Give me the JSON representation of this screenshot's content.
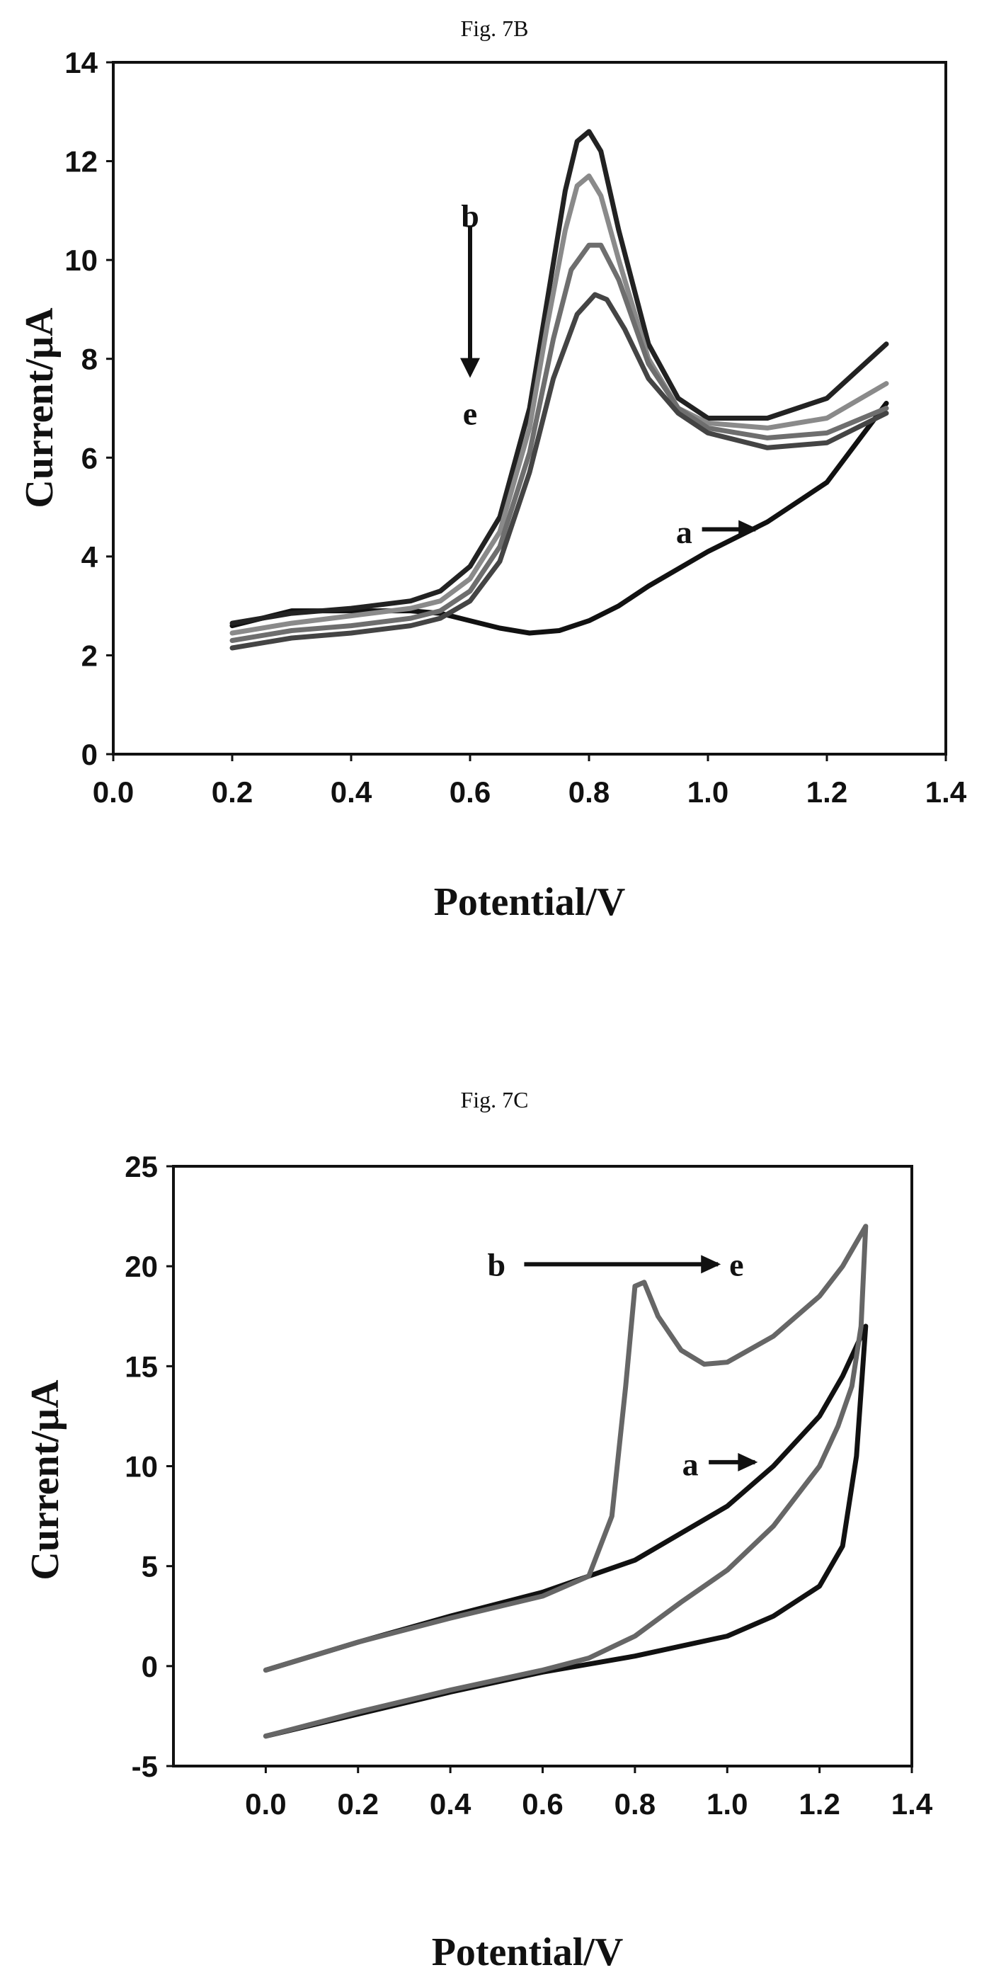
{
  "figures": {
    "b_title": "Fig. 7B",
    "c_title": "Fig. 7C"
  },
  "chart_data": [
    {
      "type": "line",
      "title": "Fig. 7B",
      "xlabel": "Potential/V",
      "ylabel": "Current/µA",
      "xlim": [
        0.0,
        1.4
      ],
      "ylim": [
        0,
        14
      ],
      "xticks": [
        "0.0",
        "0.2",
        "0.4",
        "0.6",
        "0.8",
        "1.0",
        "1.2",
        "1.4"
      ],
      "yticks": [
        "0",
        "2",
        "4",
        "6",
        "8",
        "10",
        "12",
        "14"
      ],
      "grid": false,
      "annotations": [
        {
          "text": "b",
          "x": 0.6,
          "y": 10.9
        },
        {
          "text": "e",
          "x": 0.6,
          "y": 6.9
        },
        {
          "text": "a",
          "x": 0.96,
          "y": 4.5
        }
      ],
      "series": [
        {
          "color": "#111111",
          "x": [
            0.2,
            0.3,
            0.4,
            0.5,
            0.55,
            0.6,
            0.65,
            0.7,
            0.75,
            0.8,
            0.85,
            0.9,
            1.0,
            1.1,
            1.2,
            1.3
          ],
          "y": [
            2.6,
            2.9,
            2.9,
            2.9,
            2.85,
            2.7,
            2.55,
            2.45,
            2.5,
            2.7,
            3.0,
            3.4,
            4.1,
            4.7,
            5.5,
            7.1
          ]
        },
        {
          "color": "#222222",
          "x": [
            0.2,
            0.3,
            0.4,
            0.5,
            0.55,
            0.6,
            0.65,
            0.7,
            0.73,
            0.76,
            0.78,
            0.8,
            0.82,
            0.85,
            0.9,
            0.95,
            1.0,
            1.1,
            1.2,
            1.3
          ],
          "y": [
            2.65,
            2.85,
            2.95,
            3.1,
            3.3,
            3.8,
            4.8,
            7.0,
            9.2,
            11.4,
            12.4,
            12.6,
            12.2,
            10.6,
            8.3,
            7.2,
            6.8,
            6.8,
            7.2,
            8.3
          ]
        },
        {
          "color": "#8a8a8a",
          "x": [
            0.2,
            0.3,
            0.4,
            0.5,
            0.55,
            0.6,
            0.65,
            0.7,
            0.73,
            0.76,
            0.78,
            0.8,
            0.82,
            0.85,
            0.9,
            0.95,
            1.0,
            1.1,
            1.2,
            1.3
          ],
          "y": [
            2.45,
            2.65,
            2.8,
            2.95,
            3.1,
            3.55,
            4.5,
            6.6,
            8.7,
            10.6,
            11.5,
            11.7,
            11.3,
            10.0,
            8.0,
            7.0,
            6.7,
            6.6,
            6.8,
            7.5
          ]
        },
        {
          "color": "#6e6e6e",
          "x": [
            0.2,
            0.3,
            0.4,
            0.5,
            0.55,
            0.6,
            0.65,
            0.7,
            0.74,
            0.77,
            0.8,
            0.82,
            0.85,
            0.9,
            0.95,
            1.0,
            1.1,
            1.2,
            1.3
          ],
          "y": [
            2.3,
            2.5,
            2.6,
            2.75,
            2.9,
            3.3,
            4.2,
            6.1,
            8.4,
            9.8,
            10.3,
            10.3,
            9.6,
            7.9,
            7.0,
            6.6,
            6.4,
            6.5,
            7.0
          ]
        },
        {
          "color": "#444444",
          "x": [
            0.2,
            0.3,
            0.4,
            0.5,
            0.55,
            0.6,
            0.65,
            0.7,
            0.74,
            0.78,
            0.81,
            0.83,
            0.86,
            0.9,
            0.95,
            1.0,
            1.1,
            1.2,
            1.3
          ],
          "y": [
            2.15,
            2.35,
            2.45,
            2.6,
            2.75,
            3.1,
            3.9,
            5.7,
            7.6,
            8.9,
            9.3,
            9.2,
            8.6,
            7.6,
            6.9,
            6.5,
            6.2,
            6.3,
            6.9
          ]
        }
      ]
    },
    {
      "type": "line",
      "title": "Fig. 7C",
      "xlabel": "Potential/V",
      "ylabel": "Current/µA",
      "xlim": [
        -0.2,
        1.4
      ],
      "ylim": [
        -5,
        25
      ],
      "xticks": [
        "0.0",
        "0.2",
        "0.4",
        "0.6",
        "0.8",
        "1.0",
        "1.2",
        "1.4"
      ],
      "yticks": [
        "-5",
        "0",
        "5",
        "10",
        "15",
        "20",
        "25"
      ],
      "grid": false,
      "annotations": [
        {
          "text": "b",
          "x": 0.5,
          "y": 20.1
        },
        {
          "text": "e",
          "x": 1.02,
          "y": 20.1
        },
        {
          "text": "a",
          "x": 0.92,
          "y": 10.1
        }
      ],
      "series": [
        {
          "color": "#111111",
          "x": [
            0.0,
            0.2,
            0.4,
            0.6,
            0.8,
            1.0,
            1.1,
            1.2,
            1.25,
            1.28,
            1.3,
            1.28,
            1.25,
            1.2,
            1.1,
            1.0,
            0.8,
            0.6,
            0.4,
            0.2,
            0.0
          ],
          "y": [
            -0.2,
            1.2,
            2.5,
            3.7,
            5.3,
            8.0,
            10.0,
            12.5,
            14.5,
            16.0,
            17.0,
            10.5,
            6.0,
            4.0,
            2.5,
            1.5,
            0.5,
            -0.3,
            -1.3,
            -2.4,
            -3.5
          ]
        },
        {
          "color": "#666666",
          "x": [
            0.0,
            0.2,
            0.4,
            0.6,
            0.7,
            0.75,
            0.78,
            0.8,
            0.82,
            0.85,
            0.9,
            0.95,
            1.0,
            1.1,
            1.2,
            1.25,
            1.3,
            1.29,
            1.27,
            1.24,
            1.2,
            1.1,
            1.0,
            0.9,
            0.8,
            0.7,
            0.6,
            0.4,
            0.2,
            0.0
          ],
          "y": [
            -0.2,
            1.2,
            2.4,
            3.5,
            4.5,
            7.5,
            14.0,
            19.0,
            19.2,
            17.5,
            15.8,
            15.1,
            15.2,
            16.5,
            18.5,
            20.0,
            22.0,
            17.0,
            14.0,
            12.0,
            10.0,
            7.0,
            4.8,
            3.2,
            1.5,
            0.4,
            -0.2,
            -1.2,
            -2.3,
            -3.5
          ]
        }
      ]
    }
  ]
}
